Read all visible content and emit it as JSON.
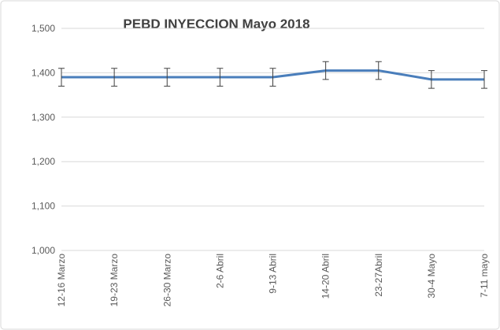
{
  "chart_data": {
    "type": "line",
    "title": "PEBD INYECCION Mayo 2018",
    "categories": [
      "12-16 Marzo",
      "19-23 Marzo",
      "26-30 Marzo",
      "2-6 Abril",
      "9-13 Abril",
      "14-20 Abril",
      "23-27Abril",
      "30-4 Mayo",
      "7-11 mayo"
    ],
    "values": [
      1390,
      1390,
      1390,
      1390,
      1390,
      1405,
      1405,
      1385,
      1385
    ],
    "errors": [
      20,
      20,
      20,
      20,
      20,
      20,
      20,
      20,
      20
    ],
    "color": "#4a7ebb",
    "error_color": "#404040",
    "ylim": [
      1000,
      1500
    ],
    "yticks": [
      {
        "value": 1000,
        "label": "1,000"
      },
      {
        "value": 1100,
        "label": "1,100"
      },
      {
        "value": 1200,
        "label": "1,200"
      },
      {
        "value": 1300,
        "label": "1,300"
      },
      {
        "value": 1400,
        "label": "1,400"
      },
      {
        "value": 1500,
        "label": "1,500"
      }
    ],
    "grid": true
  }
}
